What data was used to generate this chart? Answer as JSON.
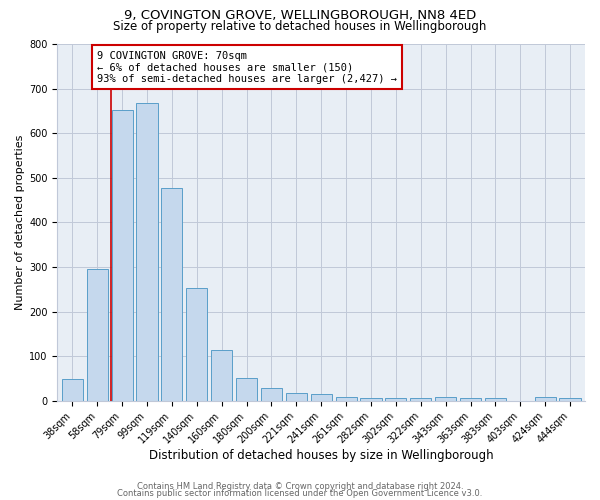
{
  "title": "9, COVINGTON GROVE, WELLINGBOROUGH, NN8 4ED",
  "subtitle": "Size of property relative to detached houses in Wellingborough",
  "xlabel": "Distribution of detached houses by size in Wellingborough",
  "ylabel": "Number of detached properties",
  "bar_labels": [
    "38sqm",
    "58sqm",
    "79sqm",
    "99sqm",
    "119sqm",
    "140sqm",
    "160sqm",
    "180sqm",
    "200sqm",
    "221sqm",
    "241sqm",
    "261sqm",
    "282sqm",
    "302sqm",
    "322sqm",
    "343sqm",
    "363sqm",
    "383sqm",
    "403sqm",
    "424sqm",
    "444sqm"
  ],
  "bar_values": [
    48,
    295,
    653,
    667,
    478,
    253,
    113,
    50,
    29,
    17,
    14,
    8,
    5,
    5,
    5,
    8,
    5,
    5,
    0,
    9,
    5
  ],
  "bar_color": "#c5d8ed",
  "bar_edge_color": "#5a9ec9",
  "vline_x": 2.0,
  "vline_color": "#cc0000",
  "annotation_text": "9 COVINGTON GROVE: 70sqm\n← 6% of detached houses are smaller (150)\n93% of semi-detached houses are larger (2,427) →",
  "annotation_box_color": "#ffffff",
  "annotation_box_edge_color": "#cc0000",
  "ylim": [
    0,
    800
  ],
  "yticks": [
    0,
    100,
    200,
    300,
    400,
    500,
    600,
    700,
    800
  ],
  "grid_color": "#c0c8d8",
  "background_color": "#e8eef5",
  "footer_line1": "Contains HM Land Registry data © Crown copyright and database right 2024.",
  "footer_line2": "Contains public sector information licensed under the Open Government Licence v3.0.",
  "title_fontsize": 9.5,
  "subtitle_fontsize": 8.5,
  "xlabel_fontsize": 8.5,
  "ylabel_fontsize": 8.0,
  "tick_fontsize": 7.0,
  "annotation_fontsize": 7.5,
  "footer_fontsize": 6.0
}
